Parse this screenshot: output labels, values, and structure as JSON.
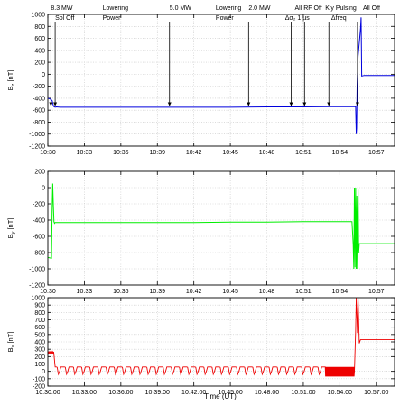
{
  "figure": {
    "xlabel": "Time (UT)",
    "colors": {
      "bz": "#0000dd",
      "by": "#00ee00",
      "bx": "#ee0000",
      "grid": "#c8c8c8",
      "axis": "#000000"
    }
  },
  "chart_data": [
    {
      "type": "line",
      "id": "bz",
      "ylabel": "B_z [nT]",
      "ylabel_main": "B",
      "ylabel_sub": "z",
      "ylabel_unit": " [nT]",
      "ylim": [
        -1200,
        1000
      ],
      "yticks": [
        -1200,
        -1000,
        -800,
        -600,
        -400,
        -200,
        0,
        200,
        400,
        600,
        800,
        1000
      ],
      "xlim": [
        0,
        28.5
      ],
      "xticks": [
        0,
        3,
        6,
        9,
        12,
        15,
        18,
        21,
        24,
        27
      ],
      "xtick_labels": [
        "10:30",
        "10:33",
        "10:36",
        "10:39",
        "10:42",
        "10:45",
        "10:48",
        "10:51",
        "10:54",
        "10:57"
      ],
      "series": [
        {
          "x": [
            0,
            0.15,
            0.25,
            0.35,
            0.4,
            0.45,
            0.5,
            0.6,
            0.7,
            1.0,
            3,
            6,
            9,
            12,
            15,
            18,
            21,
            23,
            24.5,
            25.3,
            25.35,
            25.38,
            25.42,
            25.5,
            25.7,
            25.75,
            25.8,
            26,
            27,
            28.5
          ],
          "y": [
            -400,
            -410,
            -420,
            -440,
            -480,
            -520,
            -540,
            -550,
            -545,
            -550,
            -550,
            -550,
            -550,
            -550,
            -550,
            -545,
            -545,
            -540,
            -540,
            -540,
            -1000,
            -900,
            -200,
            300,
            750,
            950,
            -30,
            -20,
            -20,
            -20
          ]
        }
      ],
      "annotations": [
        {
          "text": "8.3 MW",
          "x": 0.25,
          "row": 1
        },
        {
          "text": "Sol Off",
          "x": 0.6,
          "row": 2
        },
        {
          "text": "Lowering",
          "x": 4.5,
          "row": 1
        },
        {
          "text": "Power",
          "x": 4.5,
          "row": 2
        },
        {
          "text": "5.0 MW",
          "x": 10.0,
          "row": 1
        },
        {
          "text": "Lowering",
          "x": 13.8,
          "row": 1
        },
        {
          "text": "Power",
          "x": 13.8,
          "row": 2
        },
        {
          "text": "2.0 MW",
          "x": 16.5,
          "row": 1
        },
        {
          "text": "All RF Off",
          "x": 20.3,
          "row": 1
        },
        {
          "text": "Δσ₂ 1 µs",
          "x": 19.5,
          "row": 2
        },
        {
          "text": "Kly Pulsing",
          "x": 22.8,
          "row": 1
        },
        {
          "text": "Δfreq",
          "x": 23.3,
          "row": 2
        },
        {
          "text": "All Off",
          "x": 25.9,
          "row": 1
        }
      ],
      "arrows_x": [
        0.25,
        0.6,
        10.0,
        16.5,
        20.0,
        21.1,
        23.1,
        25.45
      ]
    },
    {
      "type": "line",
      "id": "by",
      "ylabel": "B_y [nT]",
      "ylabel_main": "B",
      "ylabel_sub": "y",
      "ylabel_unit": " [nT]",
      "ylim": [
        -1200,
        200
      ],
      "yticks": [
        -1200,
        -1000,
        -800,
        -600,
        -400,
        -200,
        0,
        200
      ],
      "xlim": [
        0,
        28.5
      ],
      "xticks": [
        0,
        3,
        6,
        9,
        12,
        15,
        18,
        21,
        24,
        27
      ],
      "xtick_labels": [
        "10:30",
        "10:33",
        "10:36",
        "10:39",
        "10:42",
        "10:45",
        "10:48",
        "10:51",
        "10:54",
        "10:57"
      ],
      "series": [
        {
          "x": [
            0,
            0.3,
            0.35,
            0.4,
            0.45,
            0.5,
            0.55,
            0.6,
            0.7,
            1.0,
            3,
            6,
            9,
            12,
            15,
            18,
            21,
            24,
            25.0,
            25.1,
            25.15,
            25.2,
            25.25,
            25.3,
            25.35,
            25.4,
            25.45,
            25.5,
            25.55,
            25.6,
            25.7,
            25.8,
            27,
            28.5
          ],
          "y": [
            -860,
            -870,
            -300,
            50,
            -200,
            -420,
            -440,
            -430,
            -430,
            -430,
            -430,
            -430,
            -430,
            -430,
            -425,
            -425,
            -420,
            -420,
            -420,
            -700,
            -1000,
            0,
            -980,
            0,
            -1000,
            -100,
            -1000,
            -10,
            -800,
            -690,
            -690,
            -690,
            -690,
            -690
          ]
        }
      ]
    },
    {
      "type": "line",
      "id": "bx",
      "ylabel": "B_x [nT]",
      "ylabel_main": "B",
      "ylabel_sub": "x",
      "ylabel_unit": " [nT]",
      "ylim": [
        -200,
        1000
      ],
      "yticks": [
        -200,
        -100,
        0,
        100,
        200,
        300,
        400,
        500,
        600,
        700,
        800,
        900,
        1000
      ],
      "xlim": [
        0,
        28.5
      ],
      "xticks": [
        0,
        3,
        6,
        9,
        12,
        15,
        18,
        21,
        24,
        27
      ],
      "xtick_labels": [
        "10:30:00",
        "10:33:00",
        "10:36:00",
        "10:39:00",
        "10:42:00",
        "10:45:00",
        "10:48:00",
        "10:51:00",
        "10:54:00",
        "10:57:00"
      ],
      "baseline": {
        "before": {
          "x0": 0,
          "x1": 0.5,
          "level": 255,
          "ripple": 20
        },
        "pulsing": {
          "x0": 0.7,
          "x1": 22.8,
          "period": 0.67,
          "high": 60,
          "low": -40,
          "spike": 0
        },
        "dense": {
          "x0": 22.8,
          "x1": 25.2,
          "high": 60,
          "low": -70
        },
        "after": [
          {
            "x": 25.2,
            "y": 0
          },
          {
            "x": 25.3,
            "y": 550
          },
          {
            "x": 25.35,
            "y": 1000
          },
          {
            "x": 25.45,
            "y": 520
          },
          {
            "x": 25.5,
            "y": 1000
          },
          {
            "x": 25.6,
            "y": 380
          },
          {
            "x": 25.7,
            "y": 430
          },
          {
            "x": 28.5,
            "y": 430
          }
        ]
      }
    }
  ]
}
